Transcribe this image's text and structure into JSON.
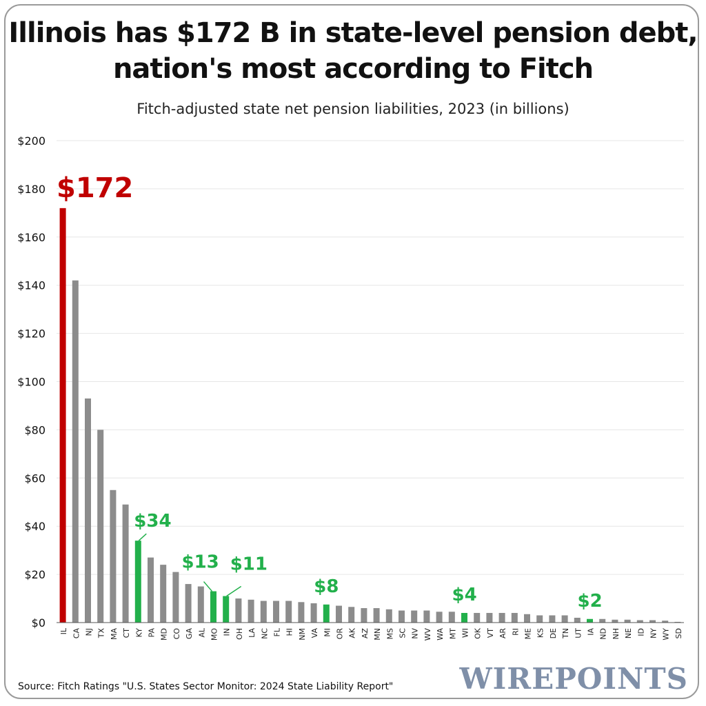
{
  "title_line1": "Illinois has $172 B in state-level pension debt,",
  "title_line2": "nation's most according to Fitch",
  "subtitle": "Fitch-adjusted state net pension liabilities, 2023 (in billions)",
  "source": "Source: Fitch Ratings \"U.S. States Sector Monitor: 2024 State Liability Report\"",
  "brand": "WIREPOINTS",
  "colors": {
    "highlight_red": "#c00000",
    "highlight_green": "#22b04b",
    "default_bar": "#8c8c8c",
    "grid": "#e6e6e6"
  },
  "chart_data": {
    "type": "bar",
    "title": "Illinois has $172 B in state-level pension debt, nation's most according to Fitch",
    "subtitle": "Fitch-adjusted state net pension liabilities, 2023 (in billions)",
    "xlabel": "",
    "ylabel": "",
    "ylim": [
      0,
      200
    ],
    "yticks": [
      0,
      20,
      40,
      60,
      80,
      100,
      120,
      140,
      160,
      180,
      200
    ],
    "ytick_labels": [
      "$0",
      "$20",
      "$40",
      "$60",
      "$80",
      "$100",
      "$120",
      "$140",
      "$160",
      "$180",
      "$200"
    ],
    "grid": true,
    "categories": [
      "IL",
      "CA",
      "NJ",
      "TX",
      "MA",
      "CT",
      "KY",
      "PA",
      "MD",
      "CO",
      "GA",
      "AL",
      "MO",
      "IN",
      "OH",
      "LA",
      "NC",
      "FL",
      "HI",
      "NM",
      "VA",
      "MI",
      "OR",
      "AK",
      "AZ",
      "MN",
      "MS",
      "SC",
      "NV",
      "WV",
      "WA",
      "MT",
      "WI",
      "OK",
      "VT",
      "AR",
      "RI",
      "ME",
      "KS",
      "DE",
      "TN",
      "UT",
      "IA",
      "ND",
      "NH",
      "NE",
      "ID",
      "NY",
      "WY",
      "SD"
    ],
    "values": [
      172,
      142,
      93,
      80,
      55,
      49,
      34,
      27,
      24,
      21,
      16,
      15,
      13,
      11,
      10,
      9.5,
      9,
      9,
      9,
      8.5,
      8,
      7.5,
      7,
      6.5,
      6,
      6,
      5.5,
      5,
      5,
      5,
      4.5,
      4.5,
      4,
      4,
      4,
      4,
      4,
      3.5,
      3,
      3,
      3,
      2,
      1.5,
      1.5,
      1.2,
      1.2,
      1,
      1,
      0.8,
      0.3
    ],
    "highlights": [
      {
        "category": "IL",
        "label": "$172",
        "color": "red"
      },
      {
        "category": "KY",
        "label": "$34",
        "color": "green"
      },
      {
        "category": "MO",
        "label": "$13",
        "color": "green"
      },
      {
        "category": "IN",
        "label": "$11",
        "color": "green"
      },
      {
        "category": "MI",
        "label": "$8",
        "color": "green"
      },
      {
        "category": "WI",
        "label": "$4",
        "color": "green"
      },
      {
        "category": "IA",
        "label": "$2",
        "color": "green"
      }
    ]
  }
}
